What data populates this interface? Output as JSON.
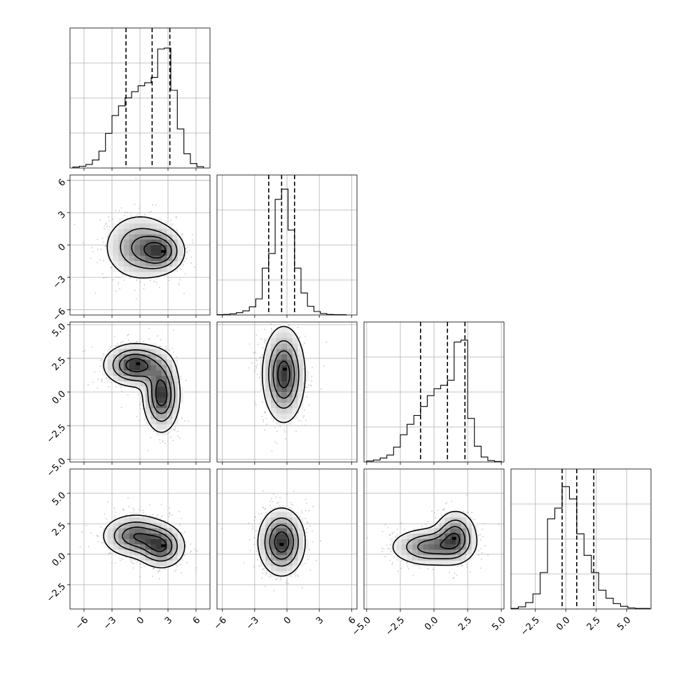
{
  "chart_data": {
    "type": "corner",
    "n_params": 4,
    "axis_labels": [
      "",
      "",
      "",
      ""
    ],
    "ranges": [
      [
        -7.5,
        7.5
      ],
      [
        -6.5,
        6.5
      ],
      [
        -5.2,
        5.2
      ],
      [
        -4.5,
        7.0
      ]
    ],
    "ticks": [
      {
        "values": [
          -6,
          -3,
          0,
          3,
          6
        ],
        "labels": [
          "−6",
          "−3",
          "0",
          "3",
          "6"
        ]
      },
      {
        "values": [
          -6,
          -3,
          0,
          3,
          6
        ],
        "labels": [
          "−6",
          "−3",
          "0",
          "3",
          "6"
        ]
      },
      {
        "values": [
          -5,
          -2.5,
          0,
          2.5,
          5
        ],
        "labels": [
          "−5.0",
          "−2.5",
          "0.0",
          "2.5",
          "5.0"
        ]
      },
      {
        "values": [
          -2.5,
          0,
          2.5,
          5
        ],
        "labels": [
          "−2.5",
          "0.0",
          "2.5",
          "5.0"
        ]
      }
    ],
    "histograms": [
      {
        "param": 0,
        "bin_edges": [
          -7.2,
          -6.5,
          -5.8,
          -5.1,
          -4.4,
          -3.7,
          -3.0,
          -2.3,
          -1.6,
          -0.9,
          -0.2,
          0.5,
          1.2,
          1.9,
          2.6,
          3.3,
          4.0,
          4.7,
          5.4,
          6.1,
          6.8
        ],
        "counts": [
          2,
          4,
          8,
          18,
          38,
          78,
          118,
          140,
          158,
          172,
          185,
          192,
          204,
          268,
          270,
          175,
          88,
          32,
          10,
          3
        ],
        "quantiles": [
          -1.5,
          1.3,
          3.2
        ],
        "ymax": 290
      },
      {
        "param": 1,
        "bin_edges": [
          -6.5,
          -5.9,
          -5.3,
          -4.7,
          -4.1,
          -3.5,
          -2.9,
          -2.3,
          -1.7,
          -1.1,
          -0.5,
          0.1,
          0.7,
          1.3,
          1.9,
          2.5,
          3.1,
          3.7,
          4.3,
          4.9,
          5.5
        ],
        "counts": [
          1,
          2,
          4,
          8,
          14,
          28,
          55,
          160,
          210,
          395,
          430,
          290,
          160,
          75,
          30,
          12,
          5,
          2,
          1,
          1
        ],
        "quantiles": [
          -1.7,
          -0.5,
          0.7
        ],
        "ymax": 440
      },
      {
        "param": 2,
        "bin_edges": [
          -5.0,
          -4.5,
          -4.0,
          -3.5,
          -3.0,
          -2.5,
          -2.0,
          -1.5,
          -1.0,
          -0.5,
          0.0,
          0.5,
          1.0,
          1.5,
          2.0,
          2.5,
          3.0,
          3.5,
          4.0,
          4.5,
          5.0
        ],
        "counts": [
          2,
          4,
          8,
          14,
          30,
          55,
          76,
          94,
          112,
          134,
          148,
          155,
          165,
          242,
          246,
          88,
          32,
          10,
          3,
          1
        ],
        "quantiles": [
          -1.0,
          1.0,
          2.3
        ],
        "ymax": 260
      },
      {
        "param": 3,
        "bin_edges": [
          -4.5,
          -3.9,
          -3.3,
          -2.7,
          -2.1,
          -1.5,
          -0.9,
          -0.3,
          0.3,
          0.9,
          1.5,
          2.1,
          2.7,
          3.3,
          3.9,
          4.5,
          5.1,
          5.7,
          6.3,
          6.9
        ],
        "counts": [
          1,
          4,
          12,
          28,
          68,
          168,
          188,
          228,
          205,
          140,
          100,
          68,
          35,
          20,
          10,
          5,
          2,
          1,
          1
        ],
        "quantiles": [
          -0.3,
          0.9,
          2.3
        ],
        "ymax": 240
      }
    ],
    "pairs": [
      {
        "x_param": 0,
        "y_param": 1,
        "modes": [
          [
            0.0,
            -0.2,
            2.0,
            1.6
          ],
          [
            2.3,
            -0.6,
            1.3,
            1.0
          ]
        ],
        "peak": [
          2.5,
          -0.6
        ]
      },
      {
        "x_param": 0,
        "y_param": 2,
        "modes": [
          [
            -0.5,
            2.0,
            1.7,
            0.8
          ],
          [
            2.3,
            -0.2,
            1.0,
            1.4
          ]
        ],
        "peak": [
          -0.2,
          2.1
        ]
      },
      {
        "x_param": 1,
        "y_param": 2,
        "modes": [
          [
            -0.3,
            1.3,
            1.0,
            1.8
          ]
        ],
        "peak": [
          -0.2,
          1.7
        ]
      },
      {
        "x_param": 0,
        "y_param": 3,
        "modes": [
          [
            -0.5,
            1.5,
            1.8,
            0.9
          ],
          [
            2.3,
            0.6,
            1.3,
            0.9
          ]
        ],
        "peak": [
          2.5,
          0.7
        ]
      },
      {
        "x_param": 1,
        "y_param": 3,
        "modes": [
          [
            -0.5,
            1.0,
            1.1,
            1.4
          ]
        ],
        "peak": [
          -0.5,
          0.8
        ]
      },
      {
        "x_param": 2,
        "y_param": 3,
        "modes": [
          [
            -0.3,
            0.6,
            1.5,
            0.8
          ],
          [
            1.6,
            1.5,
            0.8,
            1.1
          ]
        ],
        "peak": [
          1.5,
          1.3
        ]
      }
    ]
  }
}
